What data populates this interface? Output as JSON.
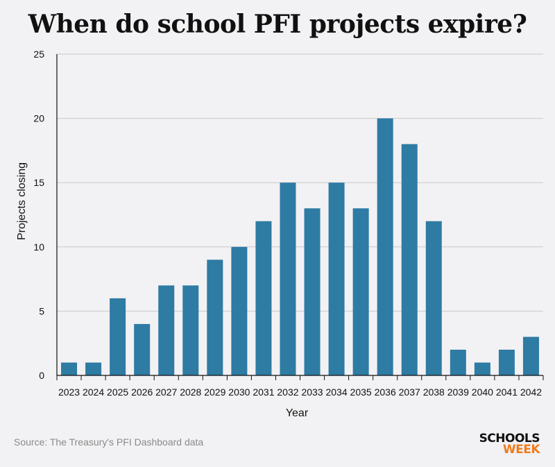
{
  "chart_data": {
    "type": "bar",
    "title": "When do school PFI projects expire?",
    "xlabel": "Year",
    "ylabel": "Projects closing",
    "ylim": [
      0,
      25
    ],
    "yticks": [
      0,
      5,
      10,
      15,
      20,
      25
    ],
    "grid": true,
    "categories": [
      "2023",
      "2024",
      "2025",
      "2026",
      "2027",
      "2028",
      "2029",
      "2030",
      "2031",
      "2032",
      "2033",
      "2034",
      "2035",
      "2036",
      "2037",
      "2038",
      "2039",
      "2040",
      "2041",
      "2042"
    ],
    "values": [
      1,
      1,
      6,
      4,
      7,
      7,
      9,
      10,
      12,
      15,
      13,
      15,
      13,
      20,
      18,
      12,
      2,
      1,
      2,
      3
    ],
    "bar_color": "#2e7ba4"
  },
  "source": "Source: The Treasury's PFI Dashboard data",
  "logo": {
    "line1": "SCHOOLS",
    "line2": "WEEK"
  }
}
